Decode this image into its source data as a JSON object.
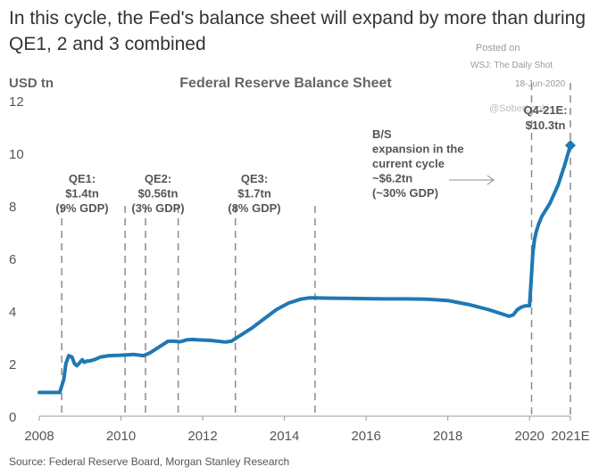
{
  "headline": "In this cycle, the Fed's balance sheet will expand by more than during QE1, 2 and 3 combined",
  "posted": {
    "line1": "Posted on",
    "line2": "WSJ: The Daily Shot",
    "line3": "18-Jun-2020"
  },
  "watermark": "@SoberLook",
  "source": "Source: Federal Reserve Board, Morgan Stanley Research",
  "colors": {
    "line": "#1f78b4",
    "text": "#555555",
    "dash": "#8c8c8c",
    "axis": "#999999"
  },
  "chart_data": {
    "type": "line",
    "title": "Federal Reserve Balance Sheet",
    "ylabel": "USD tn",
    "xlim": [
      2008,
      2021
    ],
    "ylim": [
      0,
      12
    ],
    "x_ticks": [
      2008,
      2010,
      2012,
      2014,
      2016,
      2018,
      2020,
      2021
    ],
    "x_tick_labels": [
      "2008",
      "2010",
      "2012",
      "2014",
      "2016",
      "2018",
      "2020",
      "2021E"
    ],
    "y_ticks": [
      0,
      2,
      4,
      6,
      8,
      10,
      12
    ],
    "y_tick_labels": [
      "0",
      "2",
      "4",
      "6",
      "8",
      "10",
      "12"
    ],
    "grid": false,
    "series": [
      {
        "x": [
          2008.0,
          2008.5,
          2008.6,
          2008.65,
          2008.72,
          2008.8,
          2008.86,
          2008.92,
          2008.97,
          2009.05,
          2009.1,
          2009.17,
          2009.23,
          2009.35,
          2009.5,
          2009.7,
          2010.0,
          2010.3,
          2010.55,
          2010.7,
          2010.85,
          2011.0,
          2011.15,
          2011.3,
          2011.45,
          2011.6,
          2011.75,
          2011.9,
          2012.2,
          2012.55,
          2012.7,
          2012.9,
          2013.2,
          2013.5,
          2013.8,
          2014.1,
          2014.4,
          2014.6,
          2014.75,
          2015.0,
          2015.5,
          2016.0,
          2016.5,
          2017.0,
          2017.5,
          2018.0,
          2018.5,
          2019.0,
          2019.3,
          2019.5,
          2019.6,
          2019.7,
          2019.8,
          2019.9,
          2020.0,
          2020.04,
          2020.08,
          2020.12,
          2020.16,
          2020.22,
          2020.3,
          2020.5,
          2020.7,
          2020.85,
          2021.0
        ],
        "y": [
          0.9,
          0.9,
          1.4,
          2.0,
          2.3,
          2.25,
          2.0,
          1.92,
          2.0,
          2.15,
          2.05,
          2.1,
          2.1,
          2.15,
          2.25,
          2.3,
          2.32,
          2.35,
          2.3,
          2.4,
          2.55,
          2.7,
          2.85,
          2.85,
          2.83,
          2.9,
          2.92,
          2.9,
          2.88,
          2.82,
          2.85,
          3.05,
          3.35,
          3.7,
          4.05,
          4.3,
          4.45,
          4.5,
          4.5,
          4.49,
          4.48,
          4.47,
          4.46,
          4.46,
          4.45,
          4.4,
          4.25,
          4.05,
          3.9,
          3.8,
          3.85,
          4.05,
          4.15,
          4.2,
          4.2,
          5.2,
          6.2,
          6.7,
          7.0,
          7.3,
          7.6,
          8.1,
          8.8,
          9.5,
          10.3
        ]
      }
    ],
    "markers": [
      {
        "x": 2021.0,
        "y": 10.3,
        "label_line1": "Q4-21E:",
        "label_line2": "$10.3tn"
      }
    ],
    "dashed_lines": [
      2008.55,
      2010.1,
      2010.6,
      2011.4,
      2012.8,
      2014.75,
      2020.05,
      2021.0
    ],
    "annotations": [
      {
        "lines": [
          "QE1:",
          "$1.4tn",
          "(9% GDP)"
        ]
      },
      {
        "lines": [
          "QE2:",
          "$0.56tn",
          "(3% GDP)"
        ]
      },
      {
        "lines": [
          "QE3:",
          "$1.7tn",
          "(8% GDP)"
        ]
      },
      {
        "lines": [
          "B/S",
          "expansion in the",
          "current cycle",
          "~$6.2tn",
          "(~30% GDP)"
        ]
      }
    ]
  }
}
